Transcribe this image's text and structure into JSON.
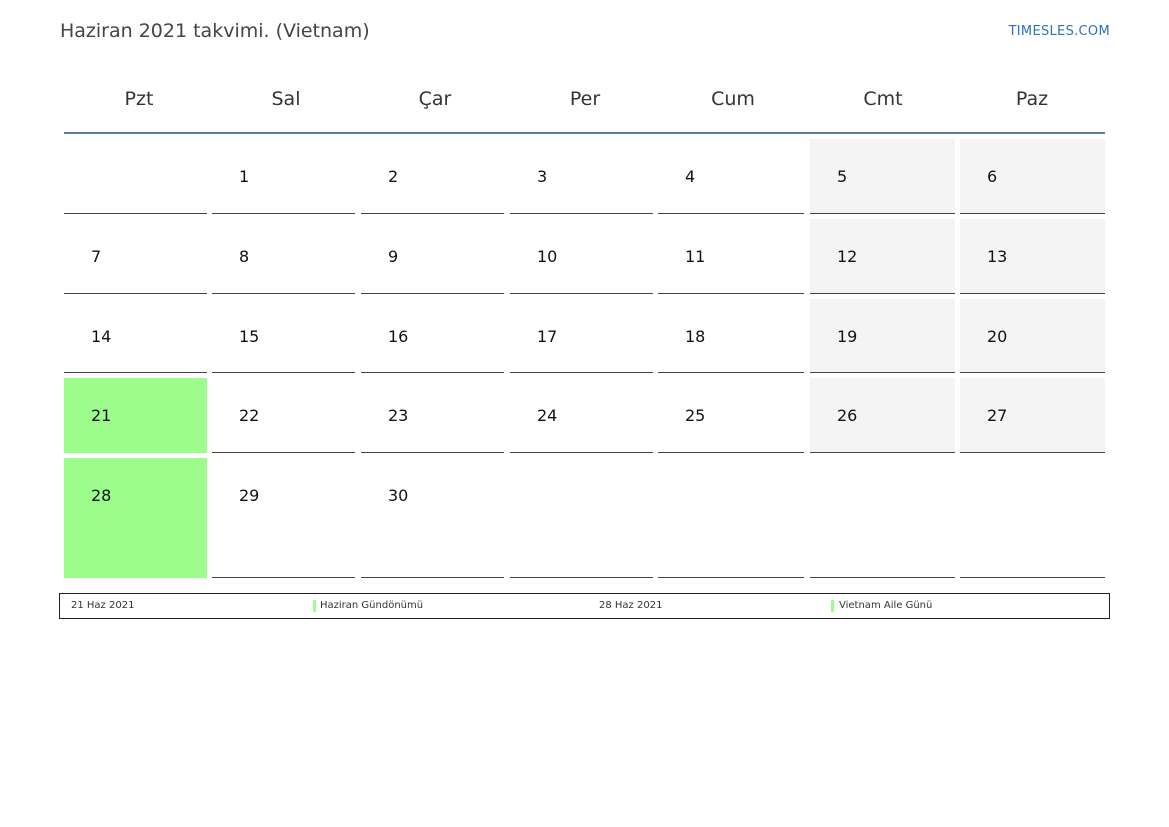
{
  "header": {
    "title": "Haziran 2021 takvimi. (Vietnam)",
    "brand": "TIMESLES.COM"
  },
  "colors": {
    "holiday": "#9cfc8c",
    "weekend": "#f4f4f4",
    "header_rule": "#5b7a9d",
    "brand": "#2f72b8"
  },
  "weekdays": [
    "Pzt",
    "Sal",
    "Çar",
    "Per",
    "Cum",
    "Cmt",
    "Paz"
  ],
  "weeks": [
    [
      "",
      "1",
      "2",
      "3",
      "4",
      "5",
      "6"
    ],
    [
      "7",
      "8",
      "9",
      "10",
      "11",
      "12",
      "13"
    ],
    [
      "14",
      "15",
      "16",
      "17",
      "18",
      "19",
      "20"
    ],
    [
      "21",
      "22",
      "23",
      "24",
      "25",
      "26",
      "27"
    ],
    [
      "28",
      "29",
      "30",
      "",
      "",
      "",
      ""
    ]
  ],
  "holidays": [
    "21",
    "28"
  ],
  "legend": [
    {
      "date": "21 Haz 2021",
      "name": "Haziran Gündönümü"
    },
    {
      "date": "28 Haz 2021",
      "name": "Vietnam Aile Günü"
    }
  ]
}
